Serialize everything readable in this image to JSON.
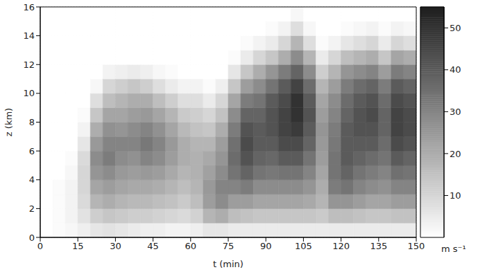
{
  "chart_data": {
    "type": "heatmap",
    "x_label": "t (min)",
    "y_label": "z (km)",
    "xlim": [
      0,
      150
    ],
    "xticks": [
      0,
      15,
      30,
      45,
      60,
      75,
      90,
      105,
      120,
      135,
      150
    ],
    "ylim": [
      0,
      16
    ],
    "yticks": [
      0,
      2,
      4,
      6,
      8,
      10,
      12,
      14,
      16
    ],
    "grid": true,
    "x_edges": [
      0,
      5,
      10,
      15,
      20,
      25,
      30,
      35,
      40,
      45,
      50,
      55,
      60,
      65,
      70,
      75,
      80,
      85,
      90,
      95,
      100,
      105,
      110,
      115,
      120,
      125,
      130,
      135,
      140,
      145,
      150
    ],
    "y_edges": [
      0,
      1,
      2,
      3,
      4,
      5,
      6,
      7,
      8,
      9,
      10,
      11,
      12,
      13,
      14,
      15,
      16
    ],
    "cells": [
      [
        0,
        0,
        0,
        0,
        0,
        0,
        0,
        0,
        0,
        0,
        0,
        0,
        0,
        0,
        0,
        0
      ],
      [
        1,
        1,
        1,
        1,
        0,
        0,
        0,
        0,
        0,
        0,
        0,
        0,
        0,
        0,
        0,
        0
      ],
      [
        2,
        3,
        3,
        3,
        2,
        1,
        0,
        0,
        0,
        0,
        0,
        0,
        0,
        0,
        0,
        0
      ],
      [
        4,
        7,
        9,
        10,
        10,
        9,
        6,
        3,
        1,
        0,
        0,
        0,
        0,
        0,
        0,
        0
      ],
      [
        6,
        12,
        18,
        22,
        26,
        28,
        25,
        20,
        14,
        8,
        2,
        0,
        0,
        0,
        0,
        0
      ],
      [
        7,
        14,
        20,
        24,
        28,
        32,
        30,
        27,
        22,
        16,
        10,
        3,
        0,
        0,
        0,
        0
      ],
      [
        6,
        13,
        18,
        22,
        25,
        28,
        30,
        26,
        22,
        18,
        12,
        4,
        0,
        0,
        0,
        0
      ],
      [
        5,
        12,
        17,
        21,
        24,
        27,
        30,
        28,
        24,
        20,
        14,
        5,
        0,
        0,
        0,
        0
      ],
      [
        4,
        12,
        17,
        21,
        25,
        30,
        33,
        30,
        25,
        20,
        12,
        4,
        0,
        0,
        0,
        0
      ],
      [
        4,
        11,
        16,
        20,
        24,
        28,
        30,
        27,
        22,
        16,
        8,
        2,
        0,
        0,
        0,
        0
      ],
      [
        3,
        10,
        15,
        18,
        21,
        24,
        25,
        22,
        18,
        12,
        5,
        1,
        0,
        0,
        0,
        0
      ],
      [
        3,
        9,
        13,
        16,
        18,
        20,
        20,
        17,
        13,
        8,
        3,
        0,
        0,
        0,
        0,
        0
      ],
      [
        4,
        11,
        16,
        18,
        19,
        19,
        18,
        15,
        12,
        8,
        3,
        0,
        0,
        0,
        0,
        0
      ],
      [
        6,
        18,
        24,
        25,
        23,
        21,
        18,
        14,
        10,
        5,
        1,
        0,
        0,
        0,
        0,
        0
      ],
      [
        6,
        20,
        28,
        30,
        28,
        26,
        24,
        20,
        15,
        10,
        4,
        0,
        0,
        0,
        0,
        0
      ],
      [
        5,
        16,
        24,
        30,
        34,
        36,
        35,
        32,
        28,
        22,
        14,
        6,
        1,
        0,
        0,
        0
      ],
      [
        5,
        15,
        24,
        32,
        38,
        42,
        44,
        42,
        38,
        32,
        24,
        14,
        5,
        1,
        0,
        0
      ],
      [
        5,
        14,
        22,
        28,
        34,
        38,
        40,
        40,
        38,
        34,
        28,
        20,
        10,
        3,
        0,
        0
      ],
      [
        5,
        14,
        22,
        28,
        33,
        37,
        40,
        42,
        42,
        40,
        34,
        26,
        14,
        5,
        1,
        0
      ],
      [
        5,
        14,
        22,
        28,
        34,
        40,
        44,
        46,
        46,
        44,
        40,
        32,
        20,
        10,
        3,
        0
      ],
      [
        5,
        14,
        22,
        28,
        34,
        40,
        44,
        48,
        50,
        50,
        46,
        38,
        28,
        18,
        8,
        2
      ],
      [
        5,
        14,
        21,
        26,
        30,
        34,
        38,
        40,
        42,
        40,
        36,
        28,
        18,
        8,
        2,
        0
      ],
      [
        5,
        13,
        18,
        20,
        22,
        24,
        25,
        26,
        24,
        22,
        18,
        12,
        5,
        1,
        0,
        0
      ],
      [
        5,
        16,
        26,
        32,
        34,
        34,
        33,
        32,
        30,
        28,
        24,
        18,
        10,
        3,
        0,
        0
      ],
      [
        5,
        16,
        26,
        34,
        38,
        40,
        40,
        40,
        38,
        36,
        32,
        26,
        16,
        6,
        1,
        0
      ],
      [
        5,
        15,
        24,
        30,
        34,
        38,
        40,
        42,
        42,
        40,
        36,
        28,
        18,
        8,
        2,
        0
      ],
      [
        5,
        14,
        22,
        28,
        32,
        36,
        40,
        42,
        44,
        42,
        38,
        30,
        20,
        10,
        3,
        0
      ],
      [
        5,
        14,
        22,
        27,
        30,
        34,
        36,
        38,
        38,
        36,
        32,
        24,
        14,
        5,
        1,
        0
      ],
      [
        5,
        15,
        24,
        30,
        35,
        40,
        44,
        46,
        46,
        44,
        40,
        32,
        22,
        10,
        3,
        0
      ],
      [
        5,
        15,
        24,
        30,
        34,
        38,
        42,
        44,
        44,
        42,
        38,
        30,
        20,
        8,
        2,
        0
      ]
    ],
    "colorbar": {
      "label": "m s⁻¹",
      "range": [
        0,
        55
      ],
      "ticks": [
        10,
        20,
        30,
        40,
        50
      ]
    }
  }
}
